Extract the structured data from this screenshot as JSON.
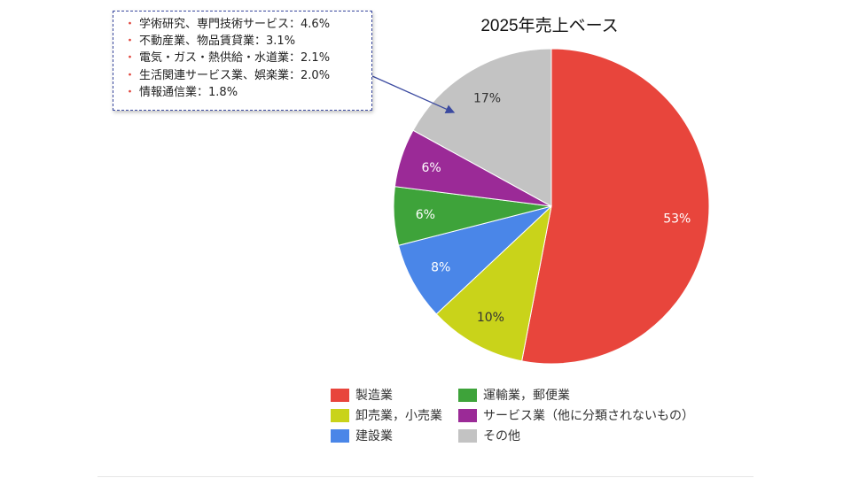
{
  "chart_data": {
    "type": "pie",
    "title": "2025年売上ベース",
    "start": "top, clockwise",
    "slices": [
      {
        "label": "製造業",
        "value": 53,
        "label_text": "53%",
        "color": "#e8453c"
      },
      {
        "label": "卸売業，小売業",
        "value": 10,
        "label_text": "10%",
        "color": "#c9d31a"
      },
      {
        "label": "建設業",
        "value": 8,
        "label_text": "8%",
        "color": "#4a86e8"
      },
      {
        "label": "運輸業，郵便業",
        "value": 6,
        "label_text": "6%",
        "color": "#3ea33a"
      },
      {
        "label": "サービス業（他に分類されないもの）",
        "value": 6,
        "label_text": "6%",
        "color": "#9b2a97"
      },
      {
        "label": "その他",
        "value": 17,
        "label_text": "17%",
        "color": "#c3c3c3"
      }
    ],
    "legend_placement": "bottom",
    "annotation": {
      "target": "その他",
      "items": [
        "学術研究、専門技術サービス：4.6%",
        "不動産業、物品賃貸業：3.1%",
        "電気・ガス・熱供給・水道業：2.1%",
        "生活関連サービス業、娯楽業：2.0%",
        "情報通信業：1.8%"
      ]
    }
  }
}
